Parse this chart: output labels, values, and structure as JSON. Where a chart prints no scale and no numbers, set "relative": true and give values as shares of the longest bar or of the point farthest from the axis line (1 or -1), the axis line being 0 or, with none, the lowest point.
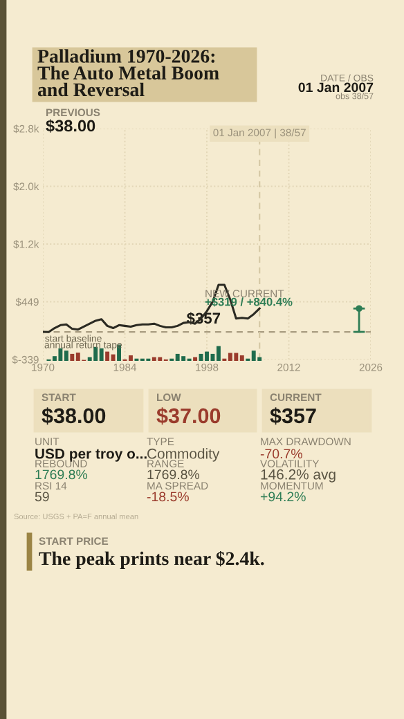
{
  "chart_data": [
    {
      "type": "line",
      "title": "Palladium 1970-2026:\nThe Auto Metal Boom\nand Reversal",
      "xlim": [
        1970,
        2026
      ],
      "xticks": [
        1970,
        1984,
        1998,
        2012,
        2026
      ],
      "ylim": [
        -339,
        2813
      ],
      "yticks": [
        {
          "value": -339,
          "label": "$-339"
        },
        {
          "value": 449,
          "label": "$449"
        },
        {
          "value": 1237,
          "label": "$1.2k"
        },
        {
          "value": 2025,
          "label": "$2.0k"
        },
        {
          "value": 2813,
          "label": "$2.8k"
        }
      ],
      "grid": true,
      "series": [
        {
          "color": "#2b2a22",
          "x": [
            1970,
            1971,
            1972,
            1973,
            1974,
            1975,
            1976,
            1977,
            1978,
            1979,
            1980,
            1981,
            1982,
            1983,
            1984,
            1985,
            1986,
            1987,
            1988,
            1989,
            1990,
            1991,
            1992,
            1993,
            1994,
            1995,
            1996,
            1997,
            1998,
            1999,
            2000,
            2001,
            2002,
            2003,
            2004,
            2005,
            2006,
            2007
          ],
          "values": [
            38,
            37,
            90,
            130,
            140,
            80,
            70,
            110,
            150,
            190,
            210,
            120,
            90,
            130,
            120,
            110,
            130,
            140,
            140,
            150,
            120,
            100,
            100,
            120,
            160,
            170,
            150,
            220,
            320,
            450,
            680,
            680,
            480,
            220,
            230,
            220,
            280,
            357
          ]
        },
        {
          "type": "scatter",
          "color": "#2e7d55",
          "marker": "circle",
          "x": [
            2024
          ],
          "values": [
            357
          ],
          "errors": [
            [
              38,
              357
            ]
          ]
        }
      ],
      "ref_lines": [
        {
          "axis": "x",
          "value": 2007,
          "label": "01 Jan 2007 | 38/57",
          "color": "#d6c9a6",
          "line_style": "dashed"
        },
        {
          "axis": "y",
          "value": 38,
          "label": "start baseline",
          "color": "#a89c80",
          "line_style": "dashed"
        }
      ],
      "annotations": [
        "DATE / OBS",
        "01 Jan 2007",
        "obs 38/57",
        "PREVIOUS",
        "$38.00",
        "NEW CURRENT",
        "+$319 / +840.4%",
        {
          "text": "$357",
          "x": 2007,
          "y": 357
        },
        "START",
        "$38.00",
        "LOW",
        "$37.00",
        "CURRENT",
        "$357",
        "UNIT",
        "USD per troy o...",
        "REBOUND",
        "1769.8%",
        "RSI 14",
        "59",
        "TYPE",
        "Commodity",
        "RANGE",
        "1769.8%",
        "MA SPREAD",
        "-18.5%",
        "MAX DRAWDOWN",
        "-70.7%",
        "VOLATILITY",
        "146.2% avg",
        "MOMENTUM",
        "+94.2%",
        "Source: USGS + PA=F annual mean",
        "START PRICE",
        "The peak prints near $2.4k."
      ]
    },
    {
      "type": "bar",
      "relative": true,
      "xlim": [
        1970,
        2026
      ],
      "tick_labels": false,
      "annotations": [
        "annual return tape"
      ],
      "x": [
        1971,
        1972,
        1973,
        1974,
        1975,
        1976,
        1977,
        1978,
        1979,
        1980,
        1981,
        1982,
        1983,
        1984,
        1985,
        1986,
        1987,
        1988,
        1989,
        1990,
        1991,
        1992,
        1993,
        1994,
        1995,
        1996,
        1997,
        1998,
        1999,
        2000,
        2001,
        2002,
        2003,
        2004,
        2005,
        2006,
        2007
      ],
      "values": [
        0.09,
        0.29,
        0.77,
        0.63,
        0.43,
        0.51,
        0.06,
        0.23,
        0.86,
        0.77,
        0.57,
        0.4,
        1,
        0.09,
        0.34,
        0.14,
        0.14,
        0.14,
        0.23,
        0.23,
        0.09,
        0.14,
        0.43,
        0.29,
        0.14,
        0.23,
        0.43,
        0.57,
        0.43,
        0.91,
        0.14,
        0.49,
        0.49,
        0.34,
        0.14,
        0.63,
        0.23
      ],
      "colors": [
        "#1f6b4c",
        "#1f6b4c",
        "#1f6b4c",
        "#1f6b4c",
        "#9a3b2c",
        "#9a3b2c",
        "#9a3b2c",
        "#1f6b4c",
        "#1f6b4c",
        "#1f6b4c",
        "#9a3b2c",
        "#9a3b2c",
        "#1f6b4c",
        "#9a3b2c",
        "#9a3b2c",
        "#1f6b4c",
        "#1f6b4c",
        "#1f6b4c",
        "#9a3b2c",
        "#9a3b2c",
        "#9a3b2c",
        "#1f6b4c",
        "#1f6b4c",
        "#1f6b4c",
        "#1f6b4c",
        "#9a3b2c",
        "#1f6b4c",
        "#1f6b4c",
        "#1f6b4c",
        "#1f6b4c",
        "#9a3b2c",
        "#9a3b2c",
        "#9a3b2c",
        "#9a3b2c",
        "#1f6b4c",
        "#1f6b4c",
        "#1f6b4c"
      ]
    }
  ]
}
